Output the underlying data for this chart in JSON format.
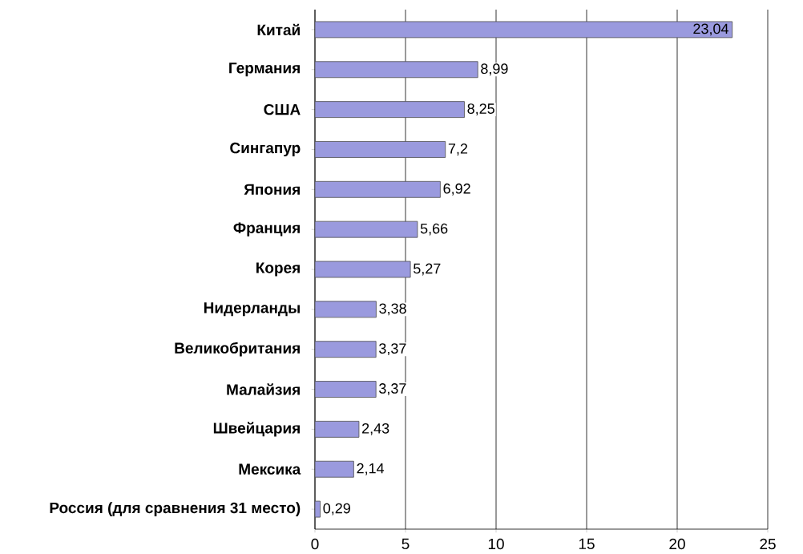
{
  "chart_data": {
    "type": "bar",
    "orientation": "horizontal",
    "categories": [
      "Китай",
      "Германия",
      "США",
      "Сингапур",
      "Япония",
      "Франция",
      "Корея",
      "Нидерланды",
      "Великобритания",
      "Малайзия",
      "Швейцария",
      "Мексика",
      "Россия (для сравнения 31 место)"
    ],
    "values": [
      23.04,
      8.99,
      8.25,
      7.2,
      6.92,
      5.66,
      5.27,
      3.38,
      3.37,
      3.37,
      2.43,
      2.14,
      0.29
    ],
    "value_labels": [
      "23,04",
      "8,99",
      "8,25",
      "7,2",
      "6,92",
      "5,66",
      "5,27",
      "3,38",
      "3,37",
      "3,37",
      "2,43",
      "2,14",
      "0,29"
    ],
    "color": "#9a9ade",
    "xlim": [
      0,
      25
    ],
    "xticks": [
      0,
      5,
      10,
      15,
      20,
      25
    ],
    "grid": "x"
  }
}
